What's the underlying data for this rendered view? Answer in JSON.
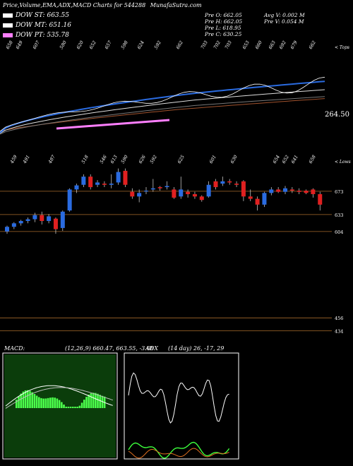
{
  "header": {
    "title": "Price,Volume,EMA,ADX,MACD Charts for 544288",
    "site": "MunafaSutra.com"
  },
  "legend": [
    {
      "label": "DOW ST:",
      "value": "663.55",
      "color": "#ffffff"
    },
    {
      "label": "DOW MT:",
      "value": "651.16",
      "color": "#ffffff"
    },
    {
      "label": "DOW PT:",
      "value": "535.78",
      "color": "#ff7fff"
    }
  ],
  "ohlc": {
    "open": "Pre  O: 662.05",
    "high": "Pre  H: 662.05",
    "low": "Pre  L: 618.95",
    "close": "Pre  C: 630.25",
    "avg_vol": "Avg V: 0.002  M",
    "pre_vol": "Pre  V: 0.054  M"
  },
  "labels": {
    "tops": "< Tops",
    "lows": "< Lows",
    "price_last": "264.50",
    "macd_title": "MACD:",
    "macd_params": "(12,26,9) 660.47, 663.55, -3.08",
    "adx_title": "ADX",
    "adx_params": "(14  day) 26, -17, 29"
  },
  "chart_data": {
    "type": "candlestick",
    "top_labels": [
      "658",
      "649",
      "607",
      "580",
      "620",
      "652",
      "657",
      "598",
      "624",
      "592",
      "662",
      "703",
      "702",
      "703",
      "653",
      "660",
      "663",
      "692",
      "679",
      "662"
    ],
    "low_labels": [
      "459",
      "491",
      "487",
      "518",
      "546",
      "613",
      "590",
      "626",
      "592",
      "625",
      "601",
      "630",
      "654",
      "652",
      "641",
      "658"
    ],
    "price_levels": [
      "673",
      "633",
      "604",
      "456",
      "434"
    ],
    "candles": [
      {
        "o": 604,
        "h": 614,
        "l": 600,
        "c": 612
      },
      {
        "o": 612,
        "h": 620,
        "l": 608,
        "c": 618
      },
      {
        "o": 618,
        "h": 624,
        "l": 614,
        "c": 622
      },
      {
        "o": 622,
        "h": 628,
        "l": 618,
        "c": 625
      },
      {
        "o": 625,
        "h": 636,
        "l": 620,
        "c": 632
      },
      {
        "o": 632,
        "h": 638,
        "l": 616,
        "c": 622
      },
      {
        "o": 622,
        "h": 634,
        "l": 618,
        "c": 630
      },
      {
        "o": 626,
        "h": 628,
        "l": 600,
        "c": 608
      },
      {
        "o": 610,
        "h": 640,
        "l": 605,
        "c": 638
      },
      {
        "o": 640,
        "h": 678,
        "l": 638,
        "c": 676
      },
      {
        "o": 676,
        "h": 686,
        "l": 670,
        "c": 683
      },
      {
        "o": 684,
        "h": 702,
        "l": 680,
        "c": 698
      },
      {
        "o": 698,
        "h": 702,
        "l": 676,
        "c": 680
      },
      {
        "o": 684,
        "h": 692,
        "l": 680,
        "c": 688
      },
      {
        "o": 686,
        "h": 690,
        "l": 680,
        "c": 684
      },
      {
        "o": 684,
        "h": 702,
        "l": 678,
        "c": 686
      },
      {
        "o": 688,
        "h": 712,
        "l": 684,
        "c": 706
      },
      {
        "o": 708,
        "h": 712,
        "l": 680,
        "c": 684
      },
      {
        "o": 672,
        "h": 678,
        "l": 660,
        "c": 664
      },
      {
        "o": 664,
        "h": 676,
        "l": 654,
        "c": 670
      },
      {
        "o": 674,
        "h": 680,
        "l": 668,
        "c": 674
      },
      {
        "o": 676,
        "h": 694,
        "l": 672,
        "c": 678
      },
      {
        "o": 680,
        "h": 682,
        "l": 674,
        "c": 678
      },
      {
        "o": 680,
        "h": 690,
        "l": 676,
        "c": 682
      },
      {
        "o": 676,
        "h": 680,
        "l": 660,
        "c": 662
      },
      {
        "o": 664,
        "h": 698,
        "l": 660,
        "c": 676
      },
      {
        "o": 672,
        "h": 676,
        "l": 662,
        "c": 668
      },
      {
        "o": 668,
        "h": 672,
        "l": 660,
        "c": 664
      },
      {
        "o": 664,
        "h": 666,
        "l": 655,
        "c": 658
      },
      {
        "o": 664,
        "h": 690,
        "l": 662,
        "c": 684
      },
      {
        "o": 690,
        "h": 694,
        "l": 676,
        "c": 680
      },
      {
        "o": 686,
        "h": 698,
        "l": 682,
        "c": 690
      },
      {
        "o": 690,
        "h": 694,
        "l": 684,
        "c": 688
      },
      {
        "o": 686,
        "h": 690,
        "l": 680,
        "c": 684
      },
      {
        "o": 690,
        "h": 692,
        "l": 656,
        "c": 664
      },
      {
        "o": 664,
        "h": 676,
        "l": 656,
        "c": 660
      },
      {
        "o": 660,
        "h": 664,
        "l": 640,
        "c": 650
      },
      {
        "o": 650,
        "h": 672,
        "l": 646,
        "c": 670
      },
      {
        "o": 670,
        "h": 680,
        "l": 666,
        "c": 676
      },
      {
        "o": 676,
        "h": 680,
        "l": 670,
        "c": 672
      },
      {
        "o": 672,
        "h": 682,
        "l": 668,
        "c": 678
      },
      {
        "o": 676,
        "h": 680,
        "l": 670,
        "c": 674
      },
      {
        "o": 674,
        "h": 678,
        "l": 668,
        "c": 672
      },
      {
        "o": 674,
        "h": 676,
        "l": 668,
        "c": 670
      },
      {
        "o": 676,
        "h": 678,
        "l": 662,
        "c": 668
      },
      {
        "o": 668,
        "h": 672,
        "l": 640,
        "c": 650
      }
    ]
  }
}
